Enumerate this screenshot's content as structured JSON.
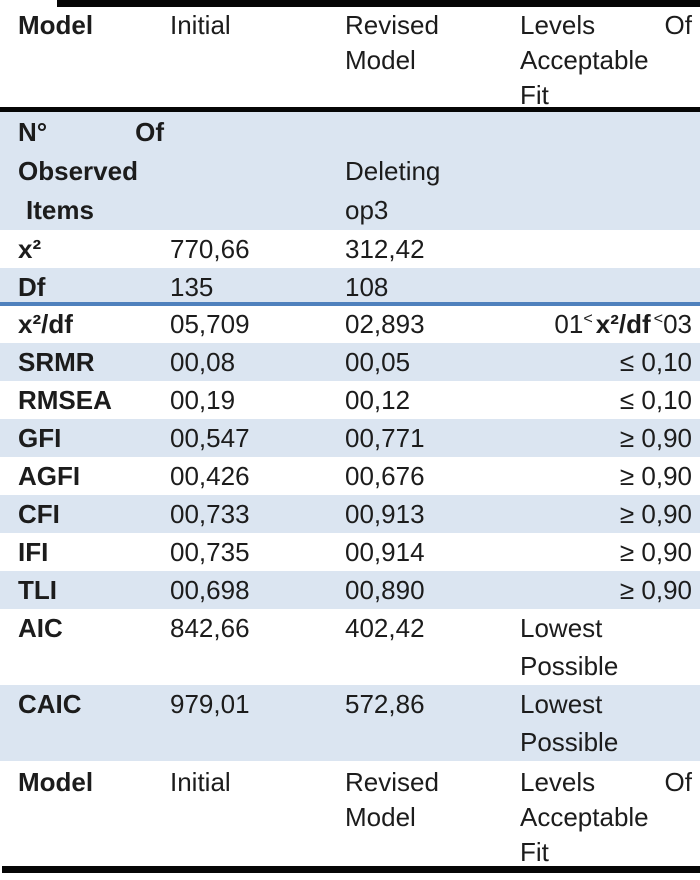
{
  "accent": {
    "row_shading": "#dbe5f1",
    "rule_blue": "#4f81bd",
    "border_black": "#060606"
  },
  "header": {
    "model": "Model",
    "initial": "Initial",
    "revised": {
      "l1": "Revised",
      "l2": "Model"
    },
    "levels": {
      "l1a": "Levels",
      "l1b": "Of",
      "l2": "Acceptable",
      "l3": "Fit"
    }
  },
  "rows": {
    "observed": {
      "label": {
        "l1a": "N°",
        "l1b": "Of",
        "l2": "Observed",
        "l3": "Items"
      },
      "initial": "",
      "revised": {
        "l1": "Deleting",
        "l2": "op3"
      },
      "fit": ""
    },
    "chi2": {
      "label": "x²",
      "initial": "770,66",
      "revised": "312,42",
      "fit": ""
    },
    "df": {
      "label": "Df",
      "initial": "135",
      "revised": "108",
      "fit": ""
    },
    "chi2df": {
      "label": "x²/df",
      "initial": "05,709",
      "revised": "02,893",
      "fit": {
        "p1": "01",
        "lt1": "<",
        "mid": "x²/df",
        "lt2": "<",
        "p3": "03"
      }
    },
    "srmr": {
      "label": "SRMR",
      "initial": "00,08",
      "revised": "00,05",
      "fit": "≤ 0,10"
    },
    "rmsea": {
      "label": "RMSEA",
      "initial": "00,19",
      "revised": "00,12",
      "fit": "≤ 0,10"
    },
    "gfi": {
      "label": "GFI",
      "initial": "00,547",
      "revised": "00,771",
      "fit": "≥ 0,90"
    },
    "agfi": {
      "label": "AGFI",
      "initial": "00,426",
      "revised": "00,676",
      "fit": "≥ 0,90"
    },
    "cfi": {
      "label": "CFI",
      "initial": "00,733",
      "revised": "00,913",
      "fit": "≥ 0,90"
    },
    "ifi": {
      "label": "IFI",
      "initial": "00,735",
      "revised": "00,914",
      "fit": "≥ 0,90"
    },
    "tli": {
      "label": "TLI",
      "initial": "00,698",
      "revised": "00,890",
      "fit": "≥ 0,90"
    },
    "aic": {
      "label": "AIC",
      "initial": "842,66",
      "revised": "402,42",
      "fit": {
        "l1": "Lowest",
        "l2": "Possible"
      }
    },
    "caic": {
      "label": "CAIC",
      "initial": "979,01",
      "revised": "572,86",
      "fit": {
        "l1": "Lowest",
        "l2": "Possible"
      }
    }
  },
  "footer": {
    "model": "Model",
    "initial": "Initial",
    "revised": {
      "l1": "Revised",
      "l2": "Model"
    },
    "levels": {
      "l1a": "Levels",
      "l1b": "Of",
      "l2": "Acceptable",
      "l3": "Fit"
    }
  }
}
